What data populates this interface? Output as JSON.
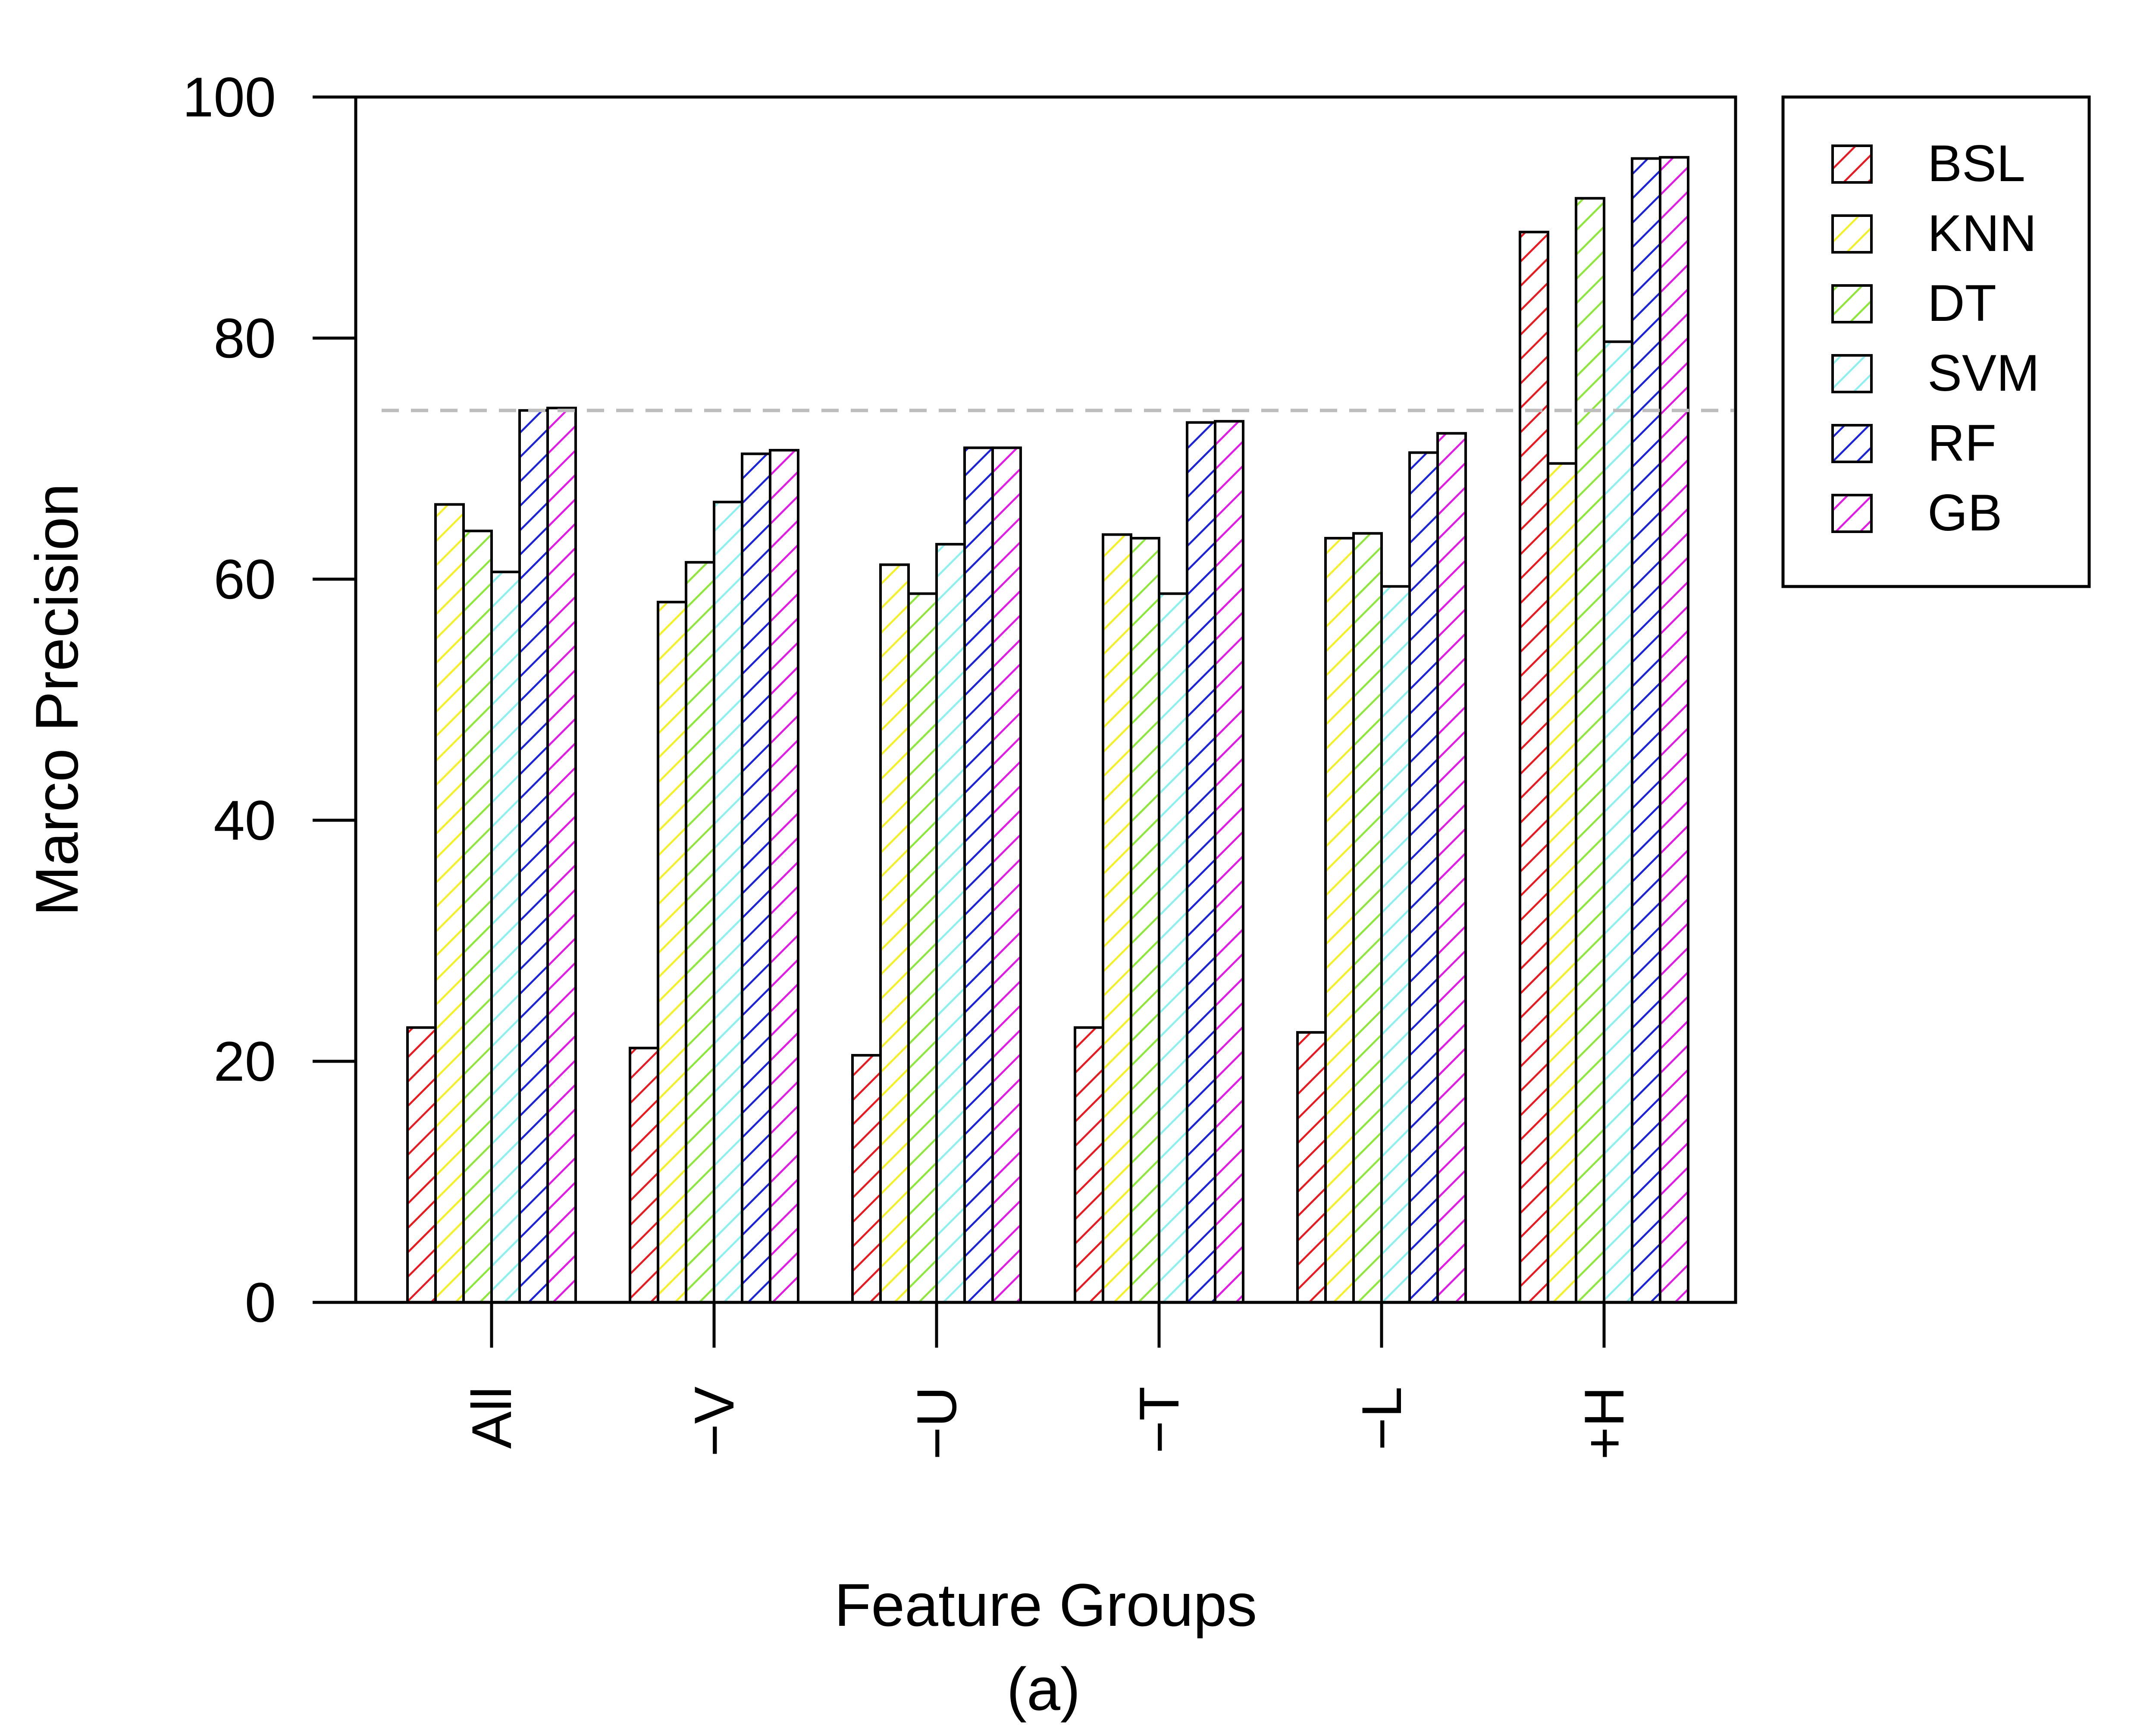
{
  "chart_data": {
    "type": "bar",
    "title": "",
    "xlabel": "Feature Groups",
    "ylabel": "Marco Precision",
    "subcaption": "(a)",
    "categories": [
      "All",
      "−V",
      "−U",
      "−T",
      "−L",
      "+H"
    ],
    "ylim": [
      0,
      100
    ],
    "yticks": [
      0,
      20,
      40,
      60,
      80,
      100
    ],
    "reference_line": 74,
    "legend_position": "top-right, outside plot",
    "hatched_bars": true,
    "series": [
      {
        "name": "BSL",
        "color": "#e8191f",
        "values": [
          22.8,
          21.1,
          20.5,
          22.8,
          22.4,
          88.8
        ]
      },
      {
        "name": "KNN",
        "color": "#f5f025",
        "values": [
          66.2,
          58.1,
          61.2,
          63.7,
          63.4,
          69.6
        ]
      },
      {
        "name": "DT",
        "color": "#8de63c",
        "values": [
          64.0,
          61.4,
          58.8,
          63.4,
          63.8,
          91.6
        ]
      },
      {
        "name": "SVM",
        "color": "#8cf0ef",
        "values": [
          60.6,
          66.4,
          62.9,
          58.8,
          59.4,
          79.7
        ]
      },
      {
        "name": "RF",
        "color": "#1a23d8",
        "values": [
          74.0,
          70.4,
          70.9,
          73.0,
          70.5,
          94.9
        ]
      },
      {
        "name": "GB",
        "color": "#e319e6",
        "values": [
          74.2,
          70.7,
          70.9,
          73.1,
          72.1,
          95.0
        ]
      }
    ]
  }
}
